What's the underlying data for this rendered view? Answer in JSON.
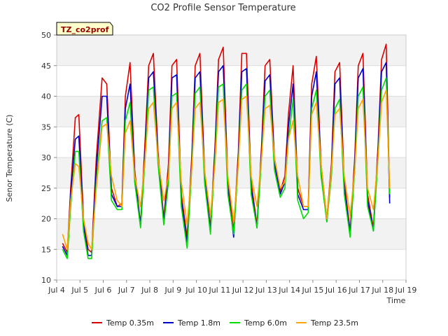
{
  "chart_data": {
    "type": "line",
    "title": "CO2 Profile Sensor Temperature",
    "tag": "TZ_co2prof",
    "xlabel": "Time",
    "ylabel": "Senor Temperature (C)",
    "xlim": [
      4,
      19
    ],
    "ylim": [
      10,
      50
    ],
    "xticks": [
      {
        "value": 4,
        "label": "Jul 4"
      },
      {
        "value": 5,
        "label": "Jul 5"
      },
      {
        "value": 6,
        "label": "Jul 6"
      },
      {
        "value": 7,
        "label": "Jul 7"
      },
      {
        "value": 8,
        "label": "Jul 8"
      },
      {
        "value": 9,
        "label": "Jul 9"
      },
      {
        "value": 10,
        "label": "Jul 10"
      },
      {
        "value": 11,
        "label": "Jul 11"
      },
      {
        "value": 12,
        "label": "Jul 12"
      },
      {
        "value": 13,
        "label": "Jul 13"
      },
      {
        "value": 14,
        "label": "Jul 14"
      },
      {
        "value": 15,
        "label": "Jul 15"
      },
      {
        "value": 16,
        "label": "Jul 16"
      },
      {
        "value": 17,
        "label": "Jul 17"
      },
      {
        "value": 18,
        "label": "Jul 18"
      },
      {
        "value": 19,
        "label": "Jul 19"
      }
    ],
    "yticks": [
      10,
      15,
      20,
      25,
      30,
      35,
      40,
      45,
      50
    ],
    "series": [
      {
        "name": "Temp 0.35m",
        "color": "#dd0000",
        "x": [
          4.25,
          4.45,
          4.6,
          4.8,
          4.95,
          5.15,
          5.35,
          5.5,
          5.7,
          5.95,
          6.15,
          6.35,
          6.6,
          6.8,
          6.95,
          7.15,
          7.35,
          7.6,
          7.8,
          7.95,
          8.15,
          8.35,
          8.6,
          8.8,
          8.95,
          9.15,
          9.35,
          9.6,
          9.8,
          9.95,
          10.15,
          10.35,
          10.6,
          10.8,
          10.95,
          11.15,
          11.35,
          11.6,
          11.8,
          11.95,
          12.15,
          12.35,
          12.6,
          12.8,
          12.95,
          13.15,
          13.35,
          13.6,
          13.8,
          13.95,
          14.15,
          14.35,
          14.6,
          14.8,
          14.95,
          15.15,
          15.35,
          15.6,
          15.8,
          15.95,
          16.15,
          16.35,
          16.6,
          16.8,
          16.95,
          17.15,
          17.35,
          17.6,
          17.8,
          17.95,
          18.15,
          18.3
        ],
        "y": [
          16,
          14.5,
          25,
          36.5,
          37,
          20,
          15,
          14.5,
          30,
          43,
          42,
          25,
          22,
          22.5,
          40,
          45.5,
          28,
          19,
          33,
          45,
          47,
          31,
          20,
          29,
          45,
          46,
          24,
          17,
          30,
          45,
          47,
          28,
          18.5,
          32,
          46,
          48,
          26,
          18,
          31,
          47,
          47,
          26,
          19,
          32,
          45,
          46,
          30,
          24.5,
          27,
          37,
          45,
          25,
          22,
          22,
          42,
          46.5,
          29,
          20,
          29,
          44,
          45.5,
          26,
          18,
          30,
          45,
          47,
          24,
          18.5,
          32,
          46,
          48.5,
          23.5
        ]
      },
      {
        "name": "Temp 1.8m",
        "color": "#0000cc",
        "x": [
          4.25,
          4.45,
          4.6,
          4.8,
          4.95,
          5.15,
          5.35,
          5.5,
          5.7,
          5.95,
          6.15,
          6.35,
          6.6,
          6.8,
          6.95,
          7.15,
          7.35,
          7.6,
          7.8,
          7.95,
          8.15,
          8.35,
          8.6,
          8.8,
          8.95,
          9.15,
          9.35,
          9.6,
          9.8,
          9.95,
          10.15,
          10.35,
          10.6,
          10.8,
          10.95,
          11.15,
          11.35,
          11.6,
          11.8,
          11.95,
          12.15,
          12.35,
          12.6,
          12.8,
          12.95,
          13.15,
          13.35,
          13.6,
          13.8,
          13.95,
          14.15,
          14.35,
          14.6,
          14.8,
          14.95,
          15.15,
          15.35,
          15.6,
          15.8,
          15.95,
          16.15,
          16.35,
          16.6,
          16.8,
          16.95,
          17.15,
          17.35,
          17.6,
          17.8,
          17.95,
          18.15,
          18.3
        ],
        "y": [
          15.5,
          14,
          24,
          33,
          33.5,
          19,
          14,
          14,
          28,
          40,
          40,
          24,
          22,
          22,
          38,
          42,
          27,
          19,
          31,
          43,
          44,
          30,
          19.5,
          27,
          43,
          43.5,
          23,
          16,
          29,
          43,
          44,
          27,
          18,
          31,
          44,
          45,
          25,
          17,
          30,
          44,
          44.5,
          25,
          18.5,
          31,
          42.5,
          43.5,
          29,
          24,
          26,
          35,
          42,
          24,
          21.5,
          21.5,
          40,
          44,
          28,
          19.5,
          28,
          42,
          43,
          25,
          17.5,
          29,
          43,
          44.5,
          23,
          18,
          31,
          44,
          45.5,
          22.5
        ]
      },
      {
        "name": "Temp 6.0m",
        "color": "#00dd00",
        "x": [
          4.25,
          4.45,
          4.6,
          4.8,
          4.95,
          5.15,
          5.35,
          5.5,
          5.7,
          5.95,
          6.15,
          6.35,
          6.6,
          6.8,
          6.95,
          7.15,
          7.35,
          7.6,
          7.8,
          7.95,
          8.15,
          8.35,
          8.6,
          8.8,
          8.95,
          9.15,
          9.35,
          9.6,
          9.8,
          9.95,
          10.15,
          10.35,
          10.6,
          10.8,
          10.95,
          11.15,
          11.35,
          11.6,
          11.8,
          11.95,
          12.15,
          12.35,
          12.6,
          12.8,
          12.95,
          13.15,
          13.35,
          13.6,
          13.8,
          13.95,
          14.15,
          14.35,
          14.6,
          14.8,
          14.95,
          15.15,
          15.35,
          15.6,
          15.8,
          15.95,
          16.15,
          16.35,
          16.6,
          16.8,
          16.95,
          17.15,
          17.35,
          17.6,
          17.8,
          17.95,
          18.15,
          18.3
        ],
        "y": [
          15,
          13.5,
          22,
          31,
          31,
          18,
          13.5,
          13.5,
          26,
          36,
          36.5,
          23,
          21.5,
          21.5,
          36,
          39,
          26,
          18.5,
          30,
          41,
          41.5,
          29,
          19,
          26,
          40,
          40.5,
          22,
          15.2,
          28,
          40.5,
          41.5,
          26,
          17.5,
          30,
          41.5,
          42,
          24,
          17.5,
          29,
          41,
          42,
          24,
          18.5,
          30,
          40,
          41,
          28,
          23.5,
          25,
          33,
          39.5,
          23,
          20,
          21,
          38,
          41,
          27,
          19.5,
          27,
          38,
          39.5,
          24,
          17,
          28,
          40,
          41.5,
          22,
          18,
          30,
          41,
          43,
          24
        ]
      },
      {
        "name": "Temp 23.5m",
        "color": "#ffa500",
        "x": [
          4.25,
          4.45,
          4.6,
          4.8,
          4.95,
          5.15,
          5.35,
          5.5,
          5.7,
          5.95,
          6.15,
          6.35,
          6.6,
          6.8,
          6.95,
          7.15,
          7.35,
          7.6,
          7.8,
          7.95,
          8.15,
          8.35,
          8.6,
          8.8,
          8.95,
          9.15,
          9.35,
          9.6,
          9.8,
          9.95,
          10.15,
          10.35,
          10.6,
          10.8,
          10.95,
          11.15,
          11.35,
          11.6,
          11.8,
          11.95,
          12.15,
          12.35,
          12.6,
          12.8,
          12.95,
          13.15,
          13.35,
          13.6,
          13.8,
          13.95,
          14.15,
          14.35,
          14.6,
          14.8,
          14.95,
          15.15,
          15.35,
          15.6,
          15.8,
          15.95,
          16.15,
          16.35,
          16.6,
          16.8,
          16.95,
          17.15,
          17.35,
          17.6,
          17.8,
          17.95,
          18.15,
          18.3
        ],
        "y": [
          17.5,
          15,
          23,
          29,
          28.5,
          20,
          16,
          15,
          25,
          35,
          35.5,
          27,
          23,
          22,
          34,
          36,
          27,
          22,
          30,
          38,
          39,
          30,
          23,
          27,
          38,
          39,
          26,
          19,
          28,
          38,
          39,
          28,
          20.5,
          29,
          39,
          39.5,
          27,
          19.5,
          29,
          39.5,
          40,
          27,
          22,
          30,
          38,
          38.5,
          30,
          25,
          26,
          33,
          36,
          27,
          22,
          22,
          37,
          39,
          29,
          20,
          28,
          37,
          38,
          27,
          20.5,
          28,
          38,
          39.5,
          25,
          21.5,
          30,
          39,
          41,
          25
        ]
      }
    ],
    "legend": {
      "position": "bottom"
    },
    "grid": true
  }
}
